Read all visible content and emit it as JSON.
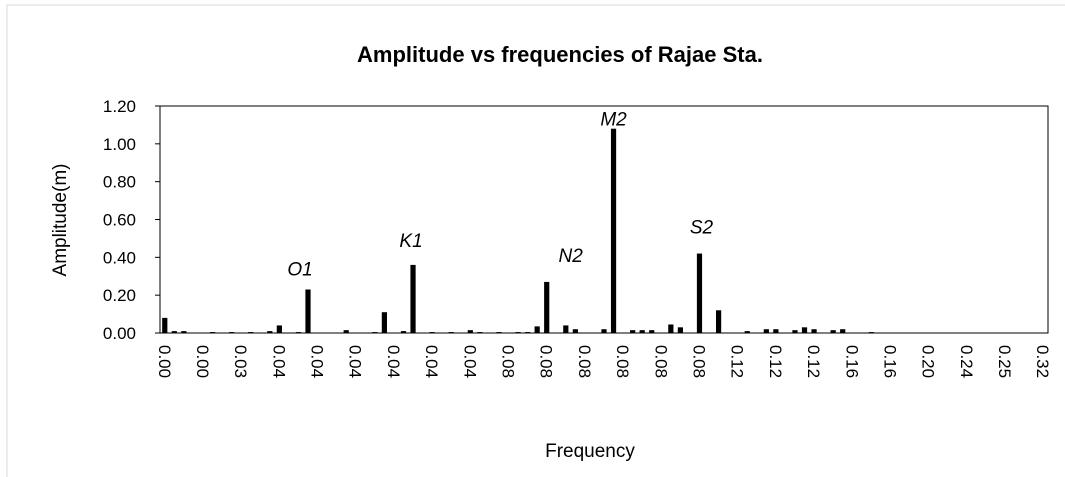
{
  "chart_data": {
    "type": "bar",
    "title": "Amplitude vs frequencies of Rajae Sta.",
    "x_label": "Frequency",
    "y_label": "Amplitude(m)",
    "color": "#000000",
    "categories": [
      "0.00",
      null,
      null,
      null,
      "0.00",
      null,
      null,
      null,
      "0.03",
      null,
      null,
      null,
      "0.04",
      null,
      null,
      null,
      "0.04",
      null,
      null,
      null,
      "0.04",
      null,
      null,
      null,
      "0.04",
      null,
      null,
      null,
      "0.04",
      null,
      null,
      null,
      "0.04",
      null,
      null,
      null,
      "0.08",
      null,
      null,
      null,
      "0.08",
      null,
      null,
      null,
      "0.08",
      null,
      null,
      null,
      "0.08",
      null,
      null,
      null,
      "0.08",
      null,
      null,
      null,
      "0.08",
      null,
      null,
      null,
      "0.12",
      null,
      null,
      null,
      "0.12",
      null,
      null,
      null,
      "0.12",
      null,
      null,
      null,
      "0.16",
      null,
      null,
      null,
      "0.16",
      null,
      null,
      null,
      "0.20",
      null,
      null,
      null,
      "0.24",
      null,
      null,
      null,
      "0.25",
      null,
      null,
      null,
      "0.32"
    ],
    "values": [
      0.08,
      0.01,
      0.01,
      0,
      0,
      0.005,
      0,
      0.005,
      0,
      0.005,
      0,
      0.01,
      0.04,
      0,
      0.005,
      0.23,
      0,
      0,
      0,
      0.015,
      0,
      0,
      0.005,
      0.11,
      0,
      0.01,
      0.36,
      0,
      0.005,
      0,
      0.005,
      0,
      0.015,
      0.005,
      0,
      0.005,
      0,
      0.005,
      0.005,
      0.035,
      0.27,
      0,
      0.04,
      0.02,
      0,
      0,
      0.02,
      1.08,
      0,
      0.015,
      0.015,
      0.015,
      0,
      0.045,
      0.03,
      0,
      0.42,
      0,
      0.12,
      0,
      0,
      0.01,
      0,
      0.02,
      0.02,
      0,
      0.015,
      0.03,
      0.02,
      0,
      0.015,
      0.02,
      0,
      0,
      0.005,
      0,
      0,
      0,
      0,
      0,
      0,
      0,
      0,
      0,
      0,
      0,
      0,
      0,
      0,
      0,
      0,
      0,
      0
    ],
    "annotations": [
      "O1",
      "K1",
      "N2",
      "M2",
      "S2"
    ],
    "ylim": [
      0,
      1.2
    ],
    "yticks": [
      {
        "value": 0,
        "label": "0.00"
      },
      {
        "value": 0.2,
        "label": "0.20"
      },
      {
        "value": 0.4,
        "label": "0.40"
      },
      {
        "value": 0.6,
        "label": "0.60"
      },
      {
        "value": 0.8,
        "label": "0.80"
      },
      {
        "value": 1.0,
        "label": "1.00"
      },
      {
        "value": 1.2,
        "label": "1.20"
      }
    ]
  }
}
